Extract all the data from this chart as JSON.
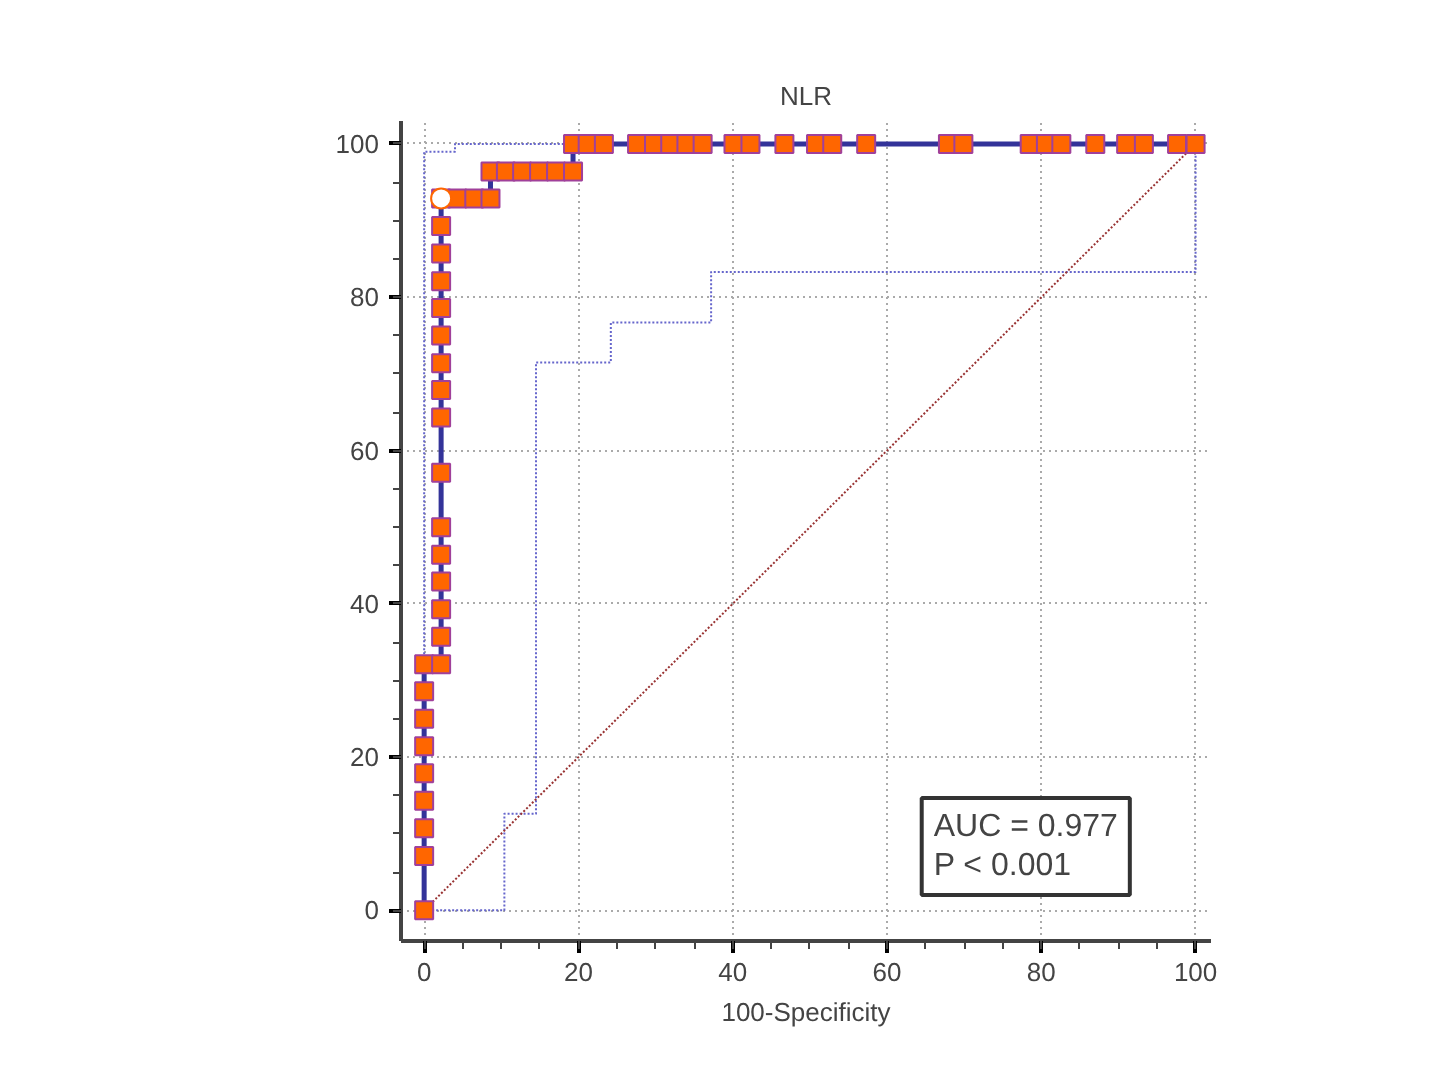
{
  "chart_data": {
    "type": "step",
    "title": "NLR",
    "xlabel": "100-Specificity",
    "xlim": [
      -3,
      102
    ],
    "ylim": [
      -4,
      103
    ],
    "xticks": [
      0,
      20,
      40,
      60,
      80,
      100
    ],
    "yticks": [
      0,
      20,
      40,
      60,
      80,
      100
    ],
    "grid": true,
    "annotations": [
      "AUC = 0.977",
      "P < 0.001"
    ],
    "series": [
      {
        "type": "line",
        "color": "#6666cc",
        "line_style": "dotted",
        "marker": "none",
        "x": [
          0,
          10.4,
          10.4,
          14.5,
          14.5,
          24.2,
          24.2,
          37.2,
          37.2,
          100,
          100
        ],
        "values": [
          0,
          0,
          12.6,
          12.6,
          71.5,
          71.5,
          76.7,
          76.7,
          83.3,
          83.3,
          100
        ]
      },
      {
        "type": "line",
        "color": "#6666cc",
        "line_style": "dotted",
        "marker": "none",
        "x": [
          0,
          0,
          4,
          4,
          100
        ],
        "values": [
          0,
          99,
          99,
          100,
          100
        ]
      },
      {
        "type": "line",
        "color": "#993333",
        "line_style": "dotted",
        "marker": "none",
        "x": [
          0,
          100
        ],
        "values": [
          0,
          100
        ]
      },
      {
        "color": "#333399",
        "line_style": "solid",
        "marker": "square",
        "x": [
          0,
          0,
          0,
          0,
          0,
          0,
          0,
          0,
          0,
          2.2,
          2.2,
          2.2,
          2.2,
          2.2,
          2.2,
          2.2,
          2.2,
          2.2,
          2.2,
          2.2,
          2.2,
          2.2,
          2.2,
          2.2,
          2.2,
          4.3,
          6.5,
          8.6,
          8.6,
          10.6,
          12.7,
          14.9,
          17.1,
          19.3,
          19.3,
          21.2,
          23.3,
          27.6,
          29.8,
          31.9,
          34.0,
          36.1,
          40.1,
          42.3,
          46.7,
          50.8,
          52.9,
          57.3,
          67.9,
          69.9,
          78.5,
          80.6,
          82.6,
          87.0,
          91.0,
          93.3,
          97.6,
          100
        ],
        "values": [
          0,
          7.1,
          10.7,
          14.3,
          17.9,
          21.4,
          25,
          28.6,
          32.1,
          32.1,
          35.7,
          39.3,
          42.9,
          46.4,
          50,
          57.1,
          64.3,
          67.9,
          71.4,
          75,
          78.6,
          82.1,
          85.7,
          89.3,
          92.9,
          92.9,
          92.9,
          92.9,
          96.4,
          96.4,
          96.4,
          96.4,
          96.4,
          96.4,
          100,
          100,
          100,
          100,
          100,
          100,
          100,
          100,
          100,
          100,
          100,
          100,
          100,
          100,
          100,
          100,
          100,
          100,
          100,
          100,
          100,
          100,
          100,
          100
        ]
      },
      {
        "type": "scatter",
        "color": "#ffffff",
        "marker": "circle",
        "x": [
          2.2
        ],
        "values": [
          92.9
        ]
      }
    ]
  }
}
